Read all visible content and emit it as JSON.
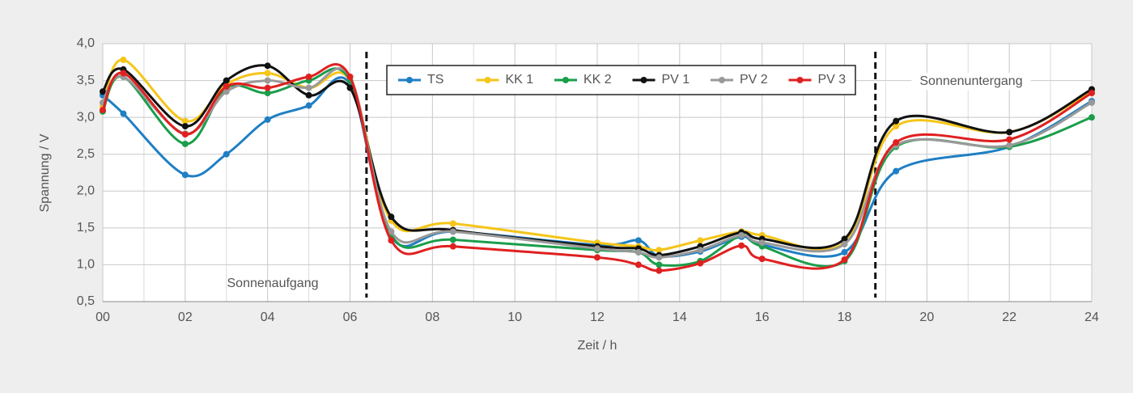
{
  "chart_data": {
    "type": "line",
    "x_label": "Zeit / h",
    "y_label": "Spannung / V",
    "x": [
      0,
      0.5,
      2,
      3,
      4,
      5,
      6,
      7,
      8.5,
      12,
      13,
      13.5,
      14.5,
      15.5,
      16,
      18,
      19.25,
      22,
      24
    ],
    "series": [
      {
        "name": "TS",
        "color": "#1f7fc4",
        "values": [
          3.3,
          3.05,
          2.22,
          2.5,
          2.97,
          3.16,
          3.45,
          1.38,
          1.45,
          1.27,
          1.33,
          1.12,
          1.18,
          1.38,
          1.27,
          1.17,
          2.27,
          2.6,
          3.22
        ]
      },
      {
        "name": "KK 1",
        "color": "#f5c518",
        "values": [
          3.15,
          3.78,
          2.95,
          3.45,
          3.6,
          3.4,
          3.5,
          1.6,
          1.56,
          1.3,
          1.25,
          1.2,
          1.33,
          1.45,
          1.4,
          1.3,
          2.88,
          2.8,
          3.35
        ]
      },
      {
        "name": "KK 2",
        "color": "#1a9e4a",
        "values": [
          3.08,
          3.55,
          2.64,
          3.4,
          3.33,
          3.5,
          3.5,
          1.4,
          1.34,
          1.2,
          1.17,
          1.0,
          1.05,
          1.4,
          1.25,
          1.05,
          2.6,
          2.6,
          3.0
        ]
      },
      {
        "name": "PV 1",
        "color": "#111111",
        "values": [
          3.35,
          3.65,
          2.88,
          3.5,
          3.7,
          3.3,
          3.4,
          1.65,
          1.47,
          1.25,
          1.22,
          1.13,
          1.25,
          1.44,
          1.35,
          1.35,
          2.95,
          2.8,
          3.38
        ]
      },
      {
        "name": "PV 2",
        "color": "#999999",
        "values": [
          3.2,
          3.55,
          2.78,
          3.35,
          3.5,
          3.4,
          3.55,
          1.45,
          1.45,
          1.22,
          1.17,
          1.1,
          1.2,
          1.4,
          1.3,
          1.28,
          2.62,
          2.62,
          3.2
        ]
      },
      {
        "name": "PV 3",
        "color": "#e02020",
        "values": [
          3.1,
          3.6,
          2.77,
          3.42,
          3.4,
          3.55,
          3.55,
          1.33,
          1.25,
          1.1,
          1.0,
          0.92,
          1.02,
          1.26,
          1.08,
          1.07,
          2.66,
          2.7,
          3.33
        ]
      }
    ],
    "xlim": [
      0,
      24
    ],
    "xticks": [
      {
        "value": 0,
        "label": "00"
      },
      {
        "value": 2,
        "label": "02"
      },
      {
        "value": 4,
        "label": "04"
      },
      {
        "value": 6,
        "label": "06"
      },
      {
        "value": 8,
        "label": "08"
      },
      10,
      12,
      14,
      16,
      18,
      20,
      22,
      24
    ],
    "x_minor_ticks": [
      1,
      3,
      5,
      7,
      9,
      11,
      13,
      15,
      17,
      19,
      21,
      23
    ],
    "ylim": [
      0.5,
      4
    ],
    "yticks": [
      {
        "value": 0.5,
        "label": "0,5"
      },
      {
        "value": 1,
        "label": "1,0"
      },
      {
        "value": 1.5,
        "label": "1,5"
      },
      {
        "value": 2,
        "label": "2,0"
      },
      {
        "value": 2.5,
        "label": "2,5"
      },
      {
        "value": 3,
        "label": "3,0"
      },
      {
        "value": 3.5,
        "label": "3,5"
      },
      {
        "value": 4,
        "label": "4,0"
      }
    ],
    "grid": true,
    "vlines": [
      6.4,
      18.75
    ],
    "annotations": [
      "Sonnenaufgang",
      "Sonnenuntergang"
    ],
    "legend": "top"
  }
}
